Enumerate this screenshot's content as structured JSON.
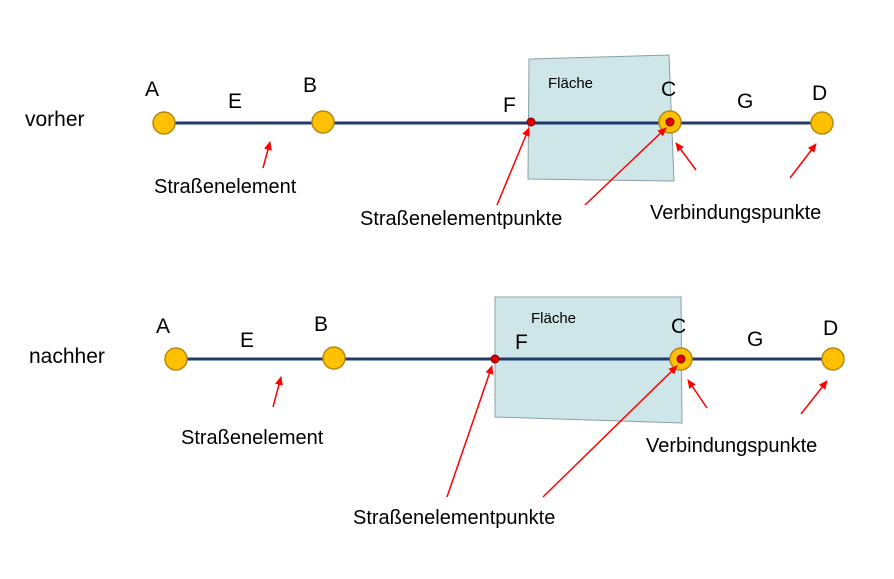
{
  "colors": {
    "line": "#1f3a6b",
    "node_fill": "#ffc000",
    "node_stroke": "#b8860b",
    "point_red": "#e00000",
    "area_fill": "#cfe6e8",
    "area_stroke": "#8aa0a8",
    "arrow": "#ff0000"
  },
  "panels": [
    {
      "row_label": "vorher",
      "area_label": "Fläche",
      "nodes": {
        "A": "A",
        "B": "B",
        "C": "C",
        "D": "D"
      },
      "edges": {
        "E": "E",
        "G": "G"
      },
      "shape_point": "F",
      "annotations": {
        "road_element": "Straßenelement",
        "road_element_points": "Straßenelementpunkte",
        "connection_points": "Verbindungspunkte"
      }
    },
    {
      "row_label": "nachher",
      "area_label": "Fläche",
      "nodes": {
        "A": "A",
        "B": "B",
        "C": "C",
        "D": "D"
      },
      "edges": {
        "E": "E",
        "G": "G"
      },
      "shape_point": "F",
      "annotations": {
        "road_element": "Straßenelement",
        "road_element_points": "Straßenelementpunkte",
        "connection_points": "Verbindungspunkte"
      }
    }
  ]
}
